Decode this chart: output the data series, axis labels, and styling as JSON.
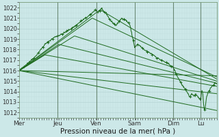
{
  "xlabel": "Pression niveau de la mer( hPa )",
  "ylim": [
    1011.5,
    1022.5
  ],
  "yticks": [
    1012,
    1013,
    1014,
    1015,
    1016,
    1017,
    1018,
    1019,
    1020,
    1021,
    1022
  ],
  "days": [
    "Mer",
    "Jeu",
    "Ven",
    "Sam",
    "Dim",
    "Lu"
  ],
  "day_positions": [
    0.0,
    0.195,
    0.39,
    0.585,
    0.78,
    0.92
  ],
  "bg_color": "#cce8e8",
  "grid_major_color": "#b0d0d0",
  "grid_minor_color": "#c0dcdc",
  "line_color": "#1e6b1e",
  "xlabel_fontsize": 7.5,
  "ytick_fontsize": 6.0,
  "xtick_fontsize": 6.5
}
